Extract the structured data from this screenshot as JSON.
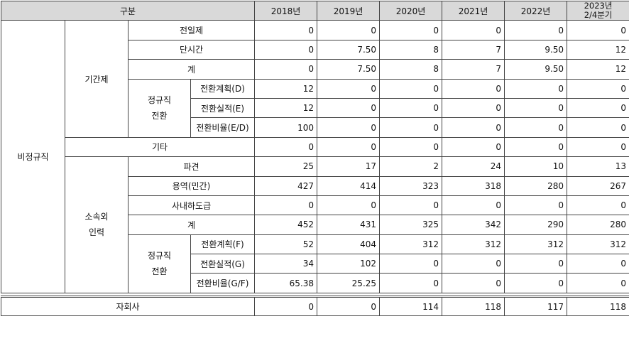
{
  "headers": [
    "구분",
    "2018년",
    "2019년",
    "2020년",
    "2021년",
    "2022년",
    "2023년",
    "2/4분기"
  ],
  "groups": {
    "nonregular": "비정규직",
    "fixedterm": "기간제",
    "conv1": [
      "정규직",
      "전환"
    ],
    "etc": "기타",
    "outsourced": [
      "소속외",
      "인력"
    ],
    "conv2": [
      "정규직",
      "전환"
    ],
    "subsidiary": "자회사"
  },
  "rows": [
    {
      "label": "전일제",
      "values": [
        "0",
        "0",
        "0",
        "0",
        "0",
        "0"
      ]
    },
    {
      "label": "단시간",
      "values": [
        "0",
        "7.50",
        "8",
        "7",
        "9.50",
        "12"
      ]
    },
    {
      "label": "계",
      "values": [
        "0",
        "7.50",
        "8",
        "7",
        "9.50",
        "12"
      ]
    },
    {
      "label": "전환계획(D)",
      "values": [
        "12",
        "0",
        "0",
        "0",
        "0",
        "0"
      ]
    },
    {
      "label": "전환실적(E)",
      "values": [
        "12",
        "0",
        "0",
        "0",
        "0",
        "0"
      ]
    },
    {
      "label": "전환비율(E/D)",
      "values": [
        "100",
        "0",
        "0",
        "0",
        "0",
        "0"
      ]
    },
    {
      "label": "기타",
      "values": [
        "0",
        "0",
        "0",
        "0",
        "0",
        "0"
      ]
    },
    {
      "label": "파견",
      "values": [
        "25",
        "17",
        "2",
        "24",
        "10",
        "13"
      ]
    },
    {
      "label": "용역(민간)",
      "values": [
        "427",
        "414",
        "323",
        "318",
        "280",
        "267"
      ]
    },
    {
      "label": "사내하도급",
      "values": [
        "0",
        "0",
        "0",
        "0",
        "0",
        "0"
      ]
    },
    {
      "label": "계",
      "values": [
        "452",
        "431",
        "325",
        "342",
        "290",
        "280"
      ]
    },
    {
      "label": "전환계획(F)",
      "values": [
        "52",
        "404",
        "312",
        "312",
        "312",
        "312"
      ]
    },
    {
      "label": "전환실적(G)",
      "values": [
        "34",
        "102",
        "0",
        "0",
        "0",
        "0"
      ]
    },
    {
      "label": "전환비율(G/F)",
      "values": [
        "65.38",
        "25.25",
        "0",
        "0",
        "0",
        "0"
      ]
    },
    {
      "label": "자회사",
      "values": [
        "0",
        "0",
        "114",
        "118",
        "117",
        "118"
      ]
    }
  ]
}
